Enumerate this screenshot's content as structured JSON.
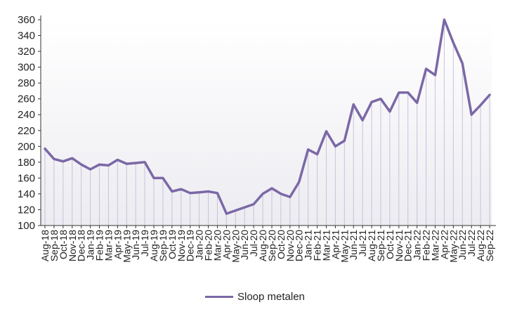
{
  "chart_data": {
    "type": "area",
    "categories": [
      "Aug-18",
      "Sep-18",
      "Oct-18",
      "Nov-18",
      "Dec-18",
      "Jan-19",
      "Feb-19",
      "Mar-19",
      "Apr-19",
      "May-19",
      "Jun-19",
      "Jul-19",
      "Aug-19",
      "Sep-19",
      "Oct-19",
      "Nov-19",
      "Dec-19",
      "Jan-20",
      "Feb-20",
      "Mar-20",
      "Apr-20",
      "May-20",
      "Jun-20",
      "Jul-20",
      "Aug-20",
      "Sep-20",
      "Oct-20",
      "Nov-20",
      "Dec-20",
      "Jan-21",
      "Feb-21",
      "Mar-21",
      "Apr-21",
      "May-21",
      "Jun-21",
      "Jul-21",
      "Aug-21",
      "Sep-21",
      "Oct-21",
      "Nov-21",
      "Dec-21",
      "Jan-22",
      "Feb-22",
      "Mar-22",
      "Apr-22",
      "May-22",
      "Jun-22",
      "Jul-22",
      "Aug-22",
      "Sep-22"
    ],
    "series": [
      {
        "name": "Sloop metalen",
        "color": "#7b68a6",
        "values": [
          197,
          184,
          181,
          185,
          177,
          171,
          177,
          176,
          183,
          178,
          179,
          180,
          160,
          160,
          143,
          146,
          141,
          142,
          143,
          141,
          115,
          119,
          123,
          127,
          140,
          147,
          140,
          136,
          155,
          196,
          190,
          219,
          200,
          207,
          253,
          233,
          256,
          260,
          244,
          268,
          268,
          255,
          298,
          290,
          360,
          331,
          305,
          240,
          252,
          265
        ]
      }
    ],
    "ylim": [
      100,
      360
    ],
    "yticks": [
      "100",
      "120",
      "140",
      "160",
      "180",
      "200",
      "220",
      "240",
      "260",
      "280",
      "300",
      "320",
      "340",
      "360"
    ],
    "grid": false,
    "legend": "bottom"
  }
}
